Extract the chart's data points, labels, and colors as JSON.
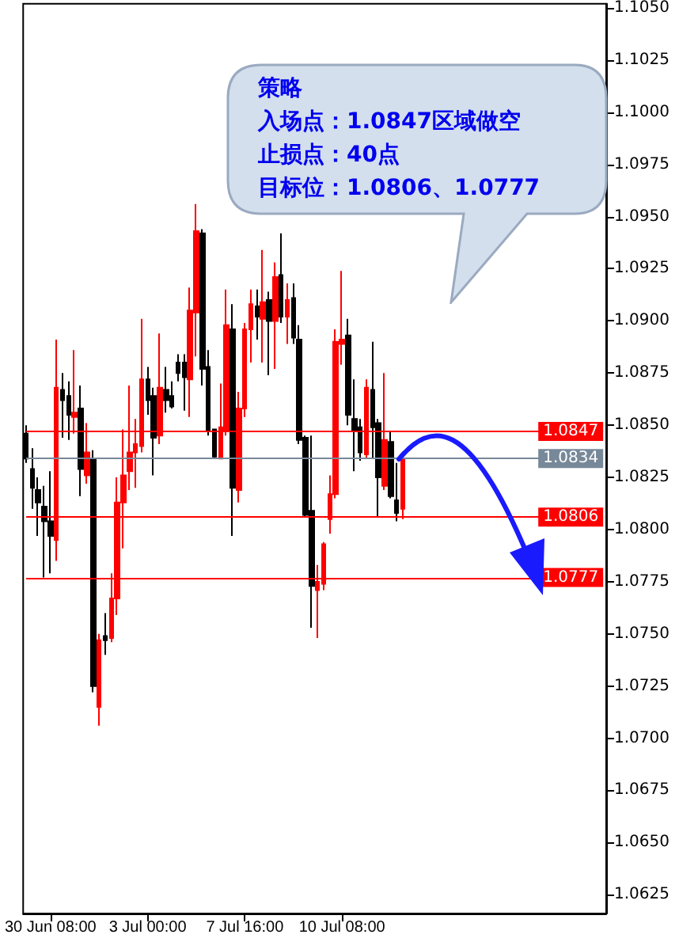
{
  "chart_data": {
    "type": "candlestick",
    "categories": [
      null,
      null,
      null,
      null,
      "30 Jun 08:00",
      null,
      null,
      null,
      null,
      null,
      null,
      null,
      null,
      null,
      null,
      null,
      null,
      null,
      null,
      null,
      "3 Jul 00:00",
      null,
      null,
      null,
      null,
      null,
      null,
      null,
      null,
      null,
      null,
      null,
      null,
      null,
      null,
      null,
      "7 Jul 16:00",
      null,
      null,
      null,
      null,
      null,
      null,
      null,
      null,
      null,
      null,
      null,
      null,
      null,
      null,
      null,
      "10 Jul 08:00",
      null,
      null,
      null,
      null,
      null,
      null,
      null,
      null,
      null,
      null,
      null,
      null,
      null,
      null,
      null,
      null,
      null,
      null,
      null,
      null,
      null,
      null,
      null,
      null,
      null,
      null,
      null,
      null,
      null,
      null,
      null,
      null,
      null,
      null,
      null,
      null,
      null,
      null,
      null,
      null,
      null,
      null,
      null
    ],
    "ohlc": [
      [
        1.0846,
        1.085,
        1.0832,
        1.0834
      ],
      [
        1.0829,
        1.0839,
        1.081,
        1.082
      ],
      [
        1.0819,
        1.0825,
        1.0797,
        1.0813
      ],
      [
        1.0811,
        1.0821,
        1.0777,
        1.0804
      ],
      [
        1.0804,
        1.0828,
        1.0779,
        1.0797
      ],
      [
        1.0795,
        1.0891,
        1.0785,
        1.0868
      ],
      [
        1.0867,
        1.0875,
        1.0844,
        1.0862
      ],
      [
        1.0864,
        1.0871,
        1.0843,
        1.0855
      ],
      [
        1.0854,
        1.0886,
        1.0846,
        1.0856
      ],
      [
        1.0858,
        1.0869,
        1.0816,
        1.0829
      ],
      [
        1.0826,
        1.0851,
        1.0822,
        1.0837
      ],
      [
        1.0834,
        1.0838,
        1.0722,
        1.0725
      ],
      [
        1.0715,
        1.075,
        1.0706,
        1.0747
      ],
      [
        1.0749,
        1.076,
        1.074,
        1.0747
      ],
      [
        1.0748,
        1.0779,
        1.0746,
        1.0767
      ],
      [
        1.0767,
        1.0825,
        1.0759,
        1.0813
      ],
      [
        1.0813,
        1.0848,
        1.0791,
        1.0826
      ],
      [
        1.0828,
        1.0869,
        1.0819,
        1.0837
      ],
      [
        1.0837,
        1.0853,
        1.082,
        1.0841
      ],
      [
        1.084,
        1.0901,
        1.0837,
        1.0872
      ],
      [
        1.0872,
        1.0878,
        1.0855,
        1.0862
      ],
      [
        1.0864,
        1.0868,
        1.0826,
        1.0844
      ],
      [
        1.0845,
        1.0894,
        1.0841,
        1.0868
      ],
      [
        1.0867,
        1.0878,
        1.0856,
        1.0862
      ],
      [
        1.0864,
        1.0871,
        1.0858,
        1.0859
      ],
      [
        1.088,
        1.0884,
        1.0871,
        1.0875
      ],
      [
        1.088,
        1.0884,
        1.0857,
        1.0873
      ],
      [
        1.0872,
        1.0916,
        1.0854,
        1.0905
      ],
      [
        1.0904,
        1.0956,
        1.0883,
        1.0943
      ],
      [
        1.0942,
        1.0944,
        1.0869,
        1.0877
      ],
      [
        1.0878,
        1.0886,
        1.0845,
        1.0847
      ],
      [
        1.0848,
        1.0848,
        1.0834,
        1.0835
      ],
      [
        1.0834,
        1.087,
        1.0834,
        1.0849
      ],
      [
        1.0847,
        1.0915,
        1.0845,
        1.0898
      ],
      [
        1.0896,
        1.0908,
        1.0797,
        1.082
      ],
      [
        1.0819,
        1.0866,
        1.0813,
        1.0858
      ],
      [
        1.0858,
        1.0899,
        1.0854,
        1.0896
      ],
      [
        1.0896,
        1.0915,
        1.088,
        1.0908
      ],
      [
        1.0907,
        1.0915,
        1.0891,
        1.0902
      ],
      [
        1.0901,
        1.0934,
        1.088,
        1.0909
      ],
      [
        1.091,
        1.0914,
        1.0874,
        1.09
      ],
      [
        1.09,
        1.0928,
        1.0877,
        1.0921
      ],
      [
        1.0922,
        1.0942,
        1.0899,
        1.0902
      ],
      [
        1.0902,
        1.0918,
        1.0889,
        1.091
      ],
      [
        1.0911,
        1.0918,
        1.0889,
        1.0892
      ],
      [
        1.0891,
        1.0898,
        1.0841,
        1.0843
      ],
      [
        1.0844,
        1.0845,
        1.0806,
        1.0807
      ],
      [
        1.0809,
        1.0845,
        1.0753,
        1.0773
      ],
      [
        1.0771,
        1.0783,
        1.0748,
        1.0775
      ],
      [
        1.0774,
        1.0794,
        1.0771,
        1.0793
      ],
      [
        1.0805,
        1.0826,
        1.0798,
        1.0817
      ],
      [
        1.0817,
        1.0896,
        1.0815,
        1.089
      ],
      [
        1.0889,
        1.0924,
        1.0879,
        1.0891
      ],
      [
        1.0893,
        1.0901,
        1.085,
        1.0855
      ],
      [
        1.0853,
        1.0872,
        1.0828,
        1.0847
      ],
      [
        1.0849,
        1.0853,
        1.0833,
        1.0837
      ],
      [
        1.0836,
        1.0872,
        1.0834,
        1.0868
      ],
      [
        1.0867,
        1.089,
        1.0834,
        1.0849
      ],
      [
        1.0851,
        1.0853,
        1.0806,
        1.0825
      ],
      [
        1.0821,
        1.0875,
        1.0819,
        1.0843
      ],
      [
        1.0842,
        1.0847,
        1.0815,
        1.0816
      ],
      [
        1.0814,
        1.0832,
        1.0804,
        1.0808
      ],
      [
        1.081,
        1.0835,
        1.0805,
        1.0834
      ],
      null,
      null,
      null,
      null,
      null,
      null,
      null,
      null,
      null,
      null,
      null,
      null,
      null,
      null,
      null,
      null,
      null,
      null,
      null,
      null,
      null,
      null,
      null,
      null,
      null,
      null,
      null,
      null,
      null,
      null,
      null,
      null,
      null
    ],
    "colors": [
      "#000000",
      "#000000",
      "#000000",
      "#000000",
      "#000000",
      "#ff0000",
      "#000000",
      "#000000",
      "#ff0000",
      "#000000",
      "#ff0000",
      "#000000",
      "#ff0000",
      "#000000",
      "#ff0000",
      "#ff0000",
      "#ff0000",
      "#ff0000",
      "#ff0000",
      "#ff0000",
      "#000000",
      "#000000",
      "#ff0000",
      "#000000",
      "#000000",
      "#000000",
      "#000000",
      "#ff0000",
      "#ff0000",
      "#000000",
      "#000000",
      "#000000",
      "#ff0000",
      "#ff0000",
      "#000000",
      "#ff0000",
      "#ff0000",
      "#ff0000",
      "#000000",
      "#ff0000",
      "#000000",
      "#ff0000",
      "#000000",
      "#ff0000",
      "#000000",
      "#000000",
      "#000000",
      "#000000",
      "#ff0000",
      "#ff0000",
      "#ff0000",
      "#ff0000",
      "#ff0000",
      "#000000",
      "#000000",
      "#000000",
      "#ff0000",
      "#000000",
      "#000000",
      "#ff0000",
      "#000000",
      "#000000",
      "#ff0000",
      null,
      null,
      null,
      null,
      null,
      null,
      null,
      null,
      null,
      null,
      null,
      null,
      null,
      null,
      null,
      null,
      null,
      null,
      null,
      null,
      null,
      null,
      null,
      null,
      null,
      null,
      null,
      null,
      null,
      null,
      null,
      null,
      null
    ],
    "ylim": [
      1.0616,
      1.1052
    ],
    "yticks": [
      1.0625,
      {
        "value": 1.065,
        "label": "1.0650"
      },
      1.0675,
      {
        "value": 1.07,
        "label": "1.0700"
      },
      1.0725,
      {
        "value": 1.075,
        "label": "1.0750"
      },
      1.0775,
      {
        "value": 1.08,
        "label": "1.0800"
      },
      1.0825,
      {
        "value": 1.085,
        "label": "1.0850"
      },
      1.0875,
      {
        "value": 1.09,
        "label": "1.0900"
      },
      1.0925,
      {
        "value": 1.095,
        "label": "1.0950"
      },
      1.0975,
      {
        "value": 1.1,
        "label": "1.1000"
      },
      1.1025,
      {
        "value": 1.105,
        "label": "1.1050"
      }
    ],
    "ref_lines": [
      {
        "axis": "y",
        "value": 1.0847,
        "label": "1.0847",
        "color": "#ff0000"
      },
      {
        "axis": "y",
        "value": 1.0834,
        "label": "1.0834",
        "color": "#778899"
      },
      {
        "axis": "y",
        "value": 1.0806,
        "label": "1.0806",
        "color": "#ff0000"
      },
      {
        "axis": "y",
        "value": 1.0777,
        "label": "1.0777",
        "color": "#ff0000"
      }
    ],
    "annotations": [
      "策略",
      "入场点：1.0847区域做空",
      "止损点：40点",
      "目标位：1.0806、1.0777"
    ]
  }
}
